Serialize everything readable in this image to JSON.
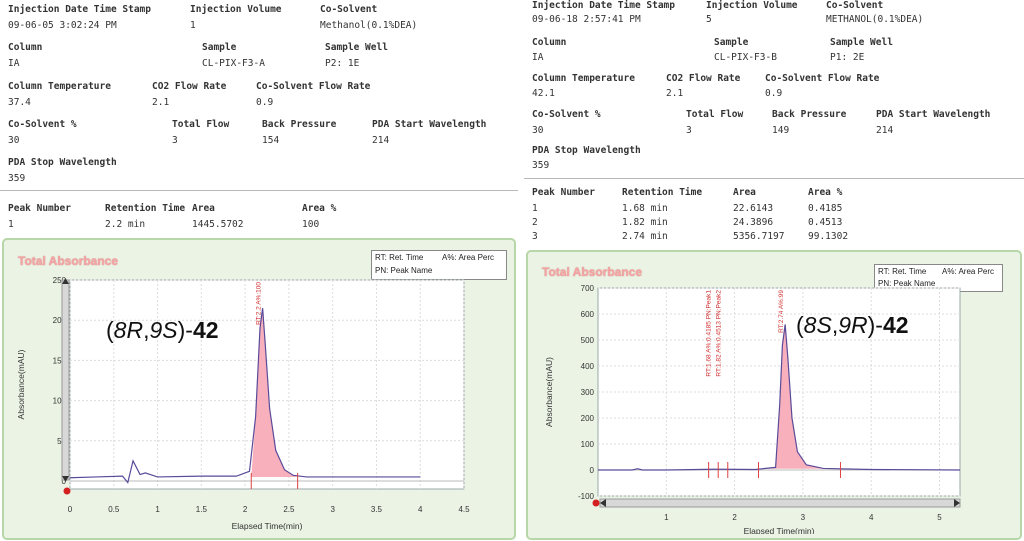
{
  "left": {
    "info": {
      "injection_date_label": "Injection Date Time Stamp",
      "injection_date": "09-06-05 3:02:24 PM",
      "injection_volume_label": "Injection Volume",
      "injection_volume": "1",
      "cosolvent_label": "Co-Solvent",
      "cosolvent": "Methanol(0.1%DEA)",
      "column_label": "Column",
      "column": "IA",
      "sample_label": "Sample",
      "sample": "CL-PIX-F3-A",
      "sample_well_label": "Sample Well",
      "sample_well": "P2: 1E",
      "column_temp_label": "Column Temperature",
      "column_temp": "37.4",
      "co2_flow_label": "CO2 Flow Rate",
      "co2_flow": "2.1",
      "cosolvent_flow_label": "Co-Solvent Flow Rate",
      "cosolvent_flow": "0.9",
      "cosolvent_pct_label": "Co-Solvent %",
      "cosolvent_pct": "30",
      "total_flow_label": "Total Flow",
      "total_flow": "3",
      "back_pressure_label": "Back Pressure",
      "back_pressure": "154",
      "pda_start_label": "PDA Start Wavelength",
      "pda_start": "214",
      "pda_stop_label": "PDA Stop Wavelength",
      "pda_stop": "359"
    },
    "peak_table": {
      "headers": [
        "Peak Number",
        "Retention Time",
        "Area",
        "Area %"
      ],
      "rows": [
        [
          "1",
          "2.2 min",
          "1445.5702",
          "100"
        ]
      ]
    },
    "chart_title": "Total Absorbance",
    "legend": {
      "rt": "RT: Ret. Time",
      "area": "A%: Area Perc",
      "pn": "PN: Peak Name"
    },
    "compound": {
      "p1": "(",
      "i1": "8R",
      "p2": ",",
      "i2": "9S",
      "p3": ")-",
      "bold": "42"
    }
  },
  "right": {
    "info": {
      "injection_date_label": "Injection Date Time Stamp",
      "injection_date": "09-06-18 2:57:41 PM",
      "injection_volume_label": "Injection Volume",
      "injection_volume": "5",
      "cosolvent_label": "Co-Solvent",
      "cosolvent": "METHANOL(0.1%DEA)",
      "column_label": "Column",
      "column": "IA",
      "sample_label": "Sample",
      "sample": "CL-PIX-F3-B",
      "sample_well_label": "Sample Well",
      "sample_well": "P1: 2E",
      "column_temp_label": "Column Temperature",
      "column_temp": "42.1",
      "co2_flow_label": "CO2 Flow Rate",
      "co2_flow": "2.1",
      "cosolvent_flow_label": "Co-Solvent Flow Rate",
      "cosolvent_flow": "0.9",
      "cosolvent_pct_label": "Co-Solvent %",
      "cosolvent_pct": "30",
      "total_flow_label": "Total Flow",
      "total_flow": "3",
      "back_pressure_label": "Back Pressure",
      "back_pressure": "149",
      "pda_start_label": "PDA Start Wavelength",
      "pda_start": "214",
      "pda_stop_label": "PDA Stop Wavelength",
      "pda_stop": "359"
    },
    "peak_table": {
      "headers": [
        "Peak Number",
        "Retention Time",
        "Area",
        "Area %"
      ],
      "rows": [
        [
          "1",
          "1.68 min",
          "22.6143",
          "0.4185"
        ],
        [
          "2",
          "1.82 min",
          "24.3896",
          "0.4513"
        ],
        [
          "3",
          "2.74 min",
          "5356.7197",
          "99.1302"
        ]
      ]
    },
    "chart_title": "Total Absorbance",
    "legend": {
      "rt": "RT: Ret. Time",
      "area": "A%: Area Perc",
      "pn": "PN: Peak Name"
    },
    "compound": {
      "p1": "(",
      "i1": "8S",
      "p2": ",",
      "i2": "9R",
      "p3": ")-",
      "bold": "42"
    }
  },
  "chart_data": [
    {
      "type": "line",
      "title": "Total Absorbance",
      "xlabel": "Elapsed Time(min)",
      "ylabel": "Absorbance(mAU)",
      "xlim": [
        0,
        4.5
      ],
      "ylim": [
        -10,
        250
      ],
      "xticks": [
        "0",
        "0.5",
        "1",
        "1.5",
        "2",
        "2.5",
        "3",
        "3.5",
        "4",
        "4.5"
      ],
      "yticks": [
        "0",
        "50",
        "100",
        "150",
        "200",
        "250"
      ],
      "x": [
        0.0,
        0.3,
        0.6,
        0.66,
        0.72,
        0.8,
        0.86,
        1.0,
        1.5,
        1.9,
        2.05,
        2.12,
        2.17,
        2.2,
        2.23,
        2.28,
        2.35,
        2.45,
        2.55,
        2.7,
        3.0,
        4.0
      ],
      "y": [
        4,
        5,
        6,
        -2,
        25,
        8,
        10,
        5,
        6,
        6,
        12,
        80,
        190,
        215,
        170,
        90,
        38,
        14,
        7,
        5,
        5,
        5
      ],
      "peak_labels": [
        {
          "x": 2.2,
          "text": "RT:2.2 A%:100"
        }
      ],
      "integration_marks": [
        2.07,
        2.6
      ],
      "grid": true
    },
    {
      "type": "line",
      "title": "Total Absorbance",
      "xlabel": "Elapsed Time(min)",
      "ylabel": "Absorbance(mAU)",
      "xlim": [
        0,
        5.3
      ],
      "ylim": [
        -100,
        700
      ],
      "xticks": [
        "1",
        "2",
        "3",
        "4",
        "5"
      ],
      "yticks": [
        "-100",
        "0",
        "100",
        "200",
        "300",
        "400",
        "500",
        "600",
        "700"
      ],
      "x": [
        0.0,
        0.5,
        0.58,
        0.65,
        1.0,
        1.68,
        1.82,
        2.3,
        2.6,
        2.66,
        2.7,
        2.74,
        2.78,
        2.84,
        2.92,
        3.05,
        3.3,
        4.0,
        5.3
      ],
      "y": [
        0,
        0,
        5,
        0,
        0,
        3,
        3,
        2,
        10,
        250,
        480,
        560,
        430,
        200,
        70,
        20,
        6,
        2,
        0
      ],
      "peak_labels": [
        {
          "x": 1.68,
          "text": "RT:1.68 A%:0.4185 PN:Peak1"
        },
        {
          "x": 1.82,
          "text": "RT:1.82 A%:0.4513 PN:Peak2"
        },
        {
          "x": 2.74,
          "text": "RT:2.74 A%:99"
        }
      ],
      "integration_marks": [
        1.62,
        1.76,
        1.9,
        2.35,
        3.55
      ],
      "grid": true
    }
  ]
}
